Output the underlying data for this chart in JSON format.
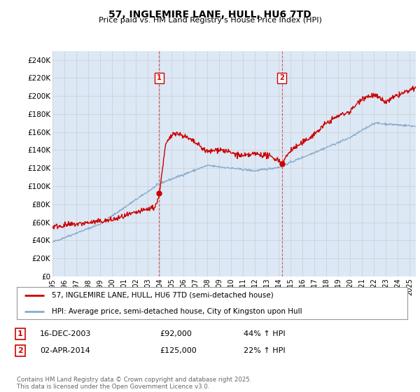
{
  "title": "57, INGLEMIRE LANE, HULL, HU6 7TD",
  "subtitle": "Price paid vs. HM Land Registry's House Price Index (HPI)",
  "ylabel_ticks": [
    "£0",
    "£20K",
    "£40K",
    "£60K",
    "£80K",
    "£100K",
    "£120K",
    "£140K",
    "£160K",
    "£180K",
    "£200K",
    "£220K",
    "£240K"
  ],
  "ytick_values": [
    0,
    20000,
    40000,
    60000,
    80000,
    100000,
    120000,
    140000,
    160000,
    180000,
    200000,
    220000,
    240000
  ],
  "ylim": [
    0,
    250000
  ],
  "xlim_start": 1995,
  "xlim_end": 2025.5,
  "red_line_color": "#cc0000",
  "blue_line_color": "#88aacc",
  "sale1_x": 2003.96,
  "sale1_y": 92000,
  "sale2_x": 2014.25,
  "sale2_y": 125000,
  "sale1_label": "1",
  "sale2_label": "2",
  "legend_line1": "57, INGLEMIRE LANE, HULL, HU6 7TD (semi-detached house)",
  "legend_line2": "HPI: Average price, semi-detached house, City of Kingston upon Hull",
  "annot1_num": "1",
  "annot1_date": "16-DEC-2003",
  "annot1_price": "£92,000",
  "annot1_hpi": "44% ↑ HPI",
  "annot2_num": "2",
  "annot2_date": "02-APR-2014",
  "annot2_price": "£125,000",
  "annot2_hpi": "22% ↑ HPI",
  "footer": "Contains HM Land Registry data © Crown copyright and database right 2025.\nThis data is licensed under the Open Government Licence v3.0.",
  "grid_color": "#cccccc",
  "bg_color": "#dce8f5",
  "plot_bg": "#ffffff"
}
